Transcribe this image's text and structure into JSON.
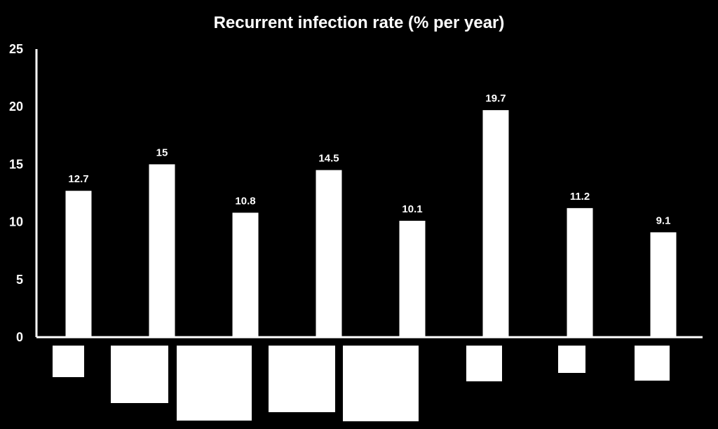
{
  "chart_data": {
    "type": "bar",
    "title": "Recurrent infection rate (% per year)",
    "xlabel": "",
    "ylabel": "",
    "categories": [
      "",
      "",
      "",
      "",
      "",
      "",
      "",
      ""
    ],
    "values": [
      12.7,
      15,
      10.8,
      14.5,
      10.1,
      19.7,
      11.2,
      9.1
    ],
    "value_labels": [
      "12.7",
      "15",
      "10.8",
      "14.5",
      "10.1",
      "19.7",
      "11.2",
      "9.1"
    ],
    "ylim": [
      0,
      25
    ],
    "yticks": [
      0,
      5,
      10,
      15,
      20,
      25
    ],
    "grid": false,
    "legend": "none"
  },
  "colors": {
    "background": "#000000",
    "bar": "#ffffff",
    "axis": "#ffffff",
    "text": "#ffffff",
    "placeholder": "#ffffff"
  }
}
